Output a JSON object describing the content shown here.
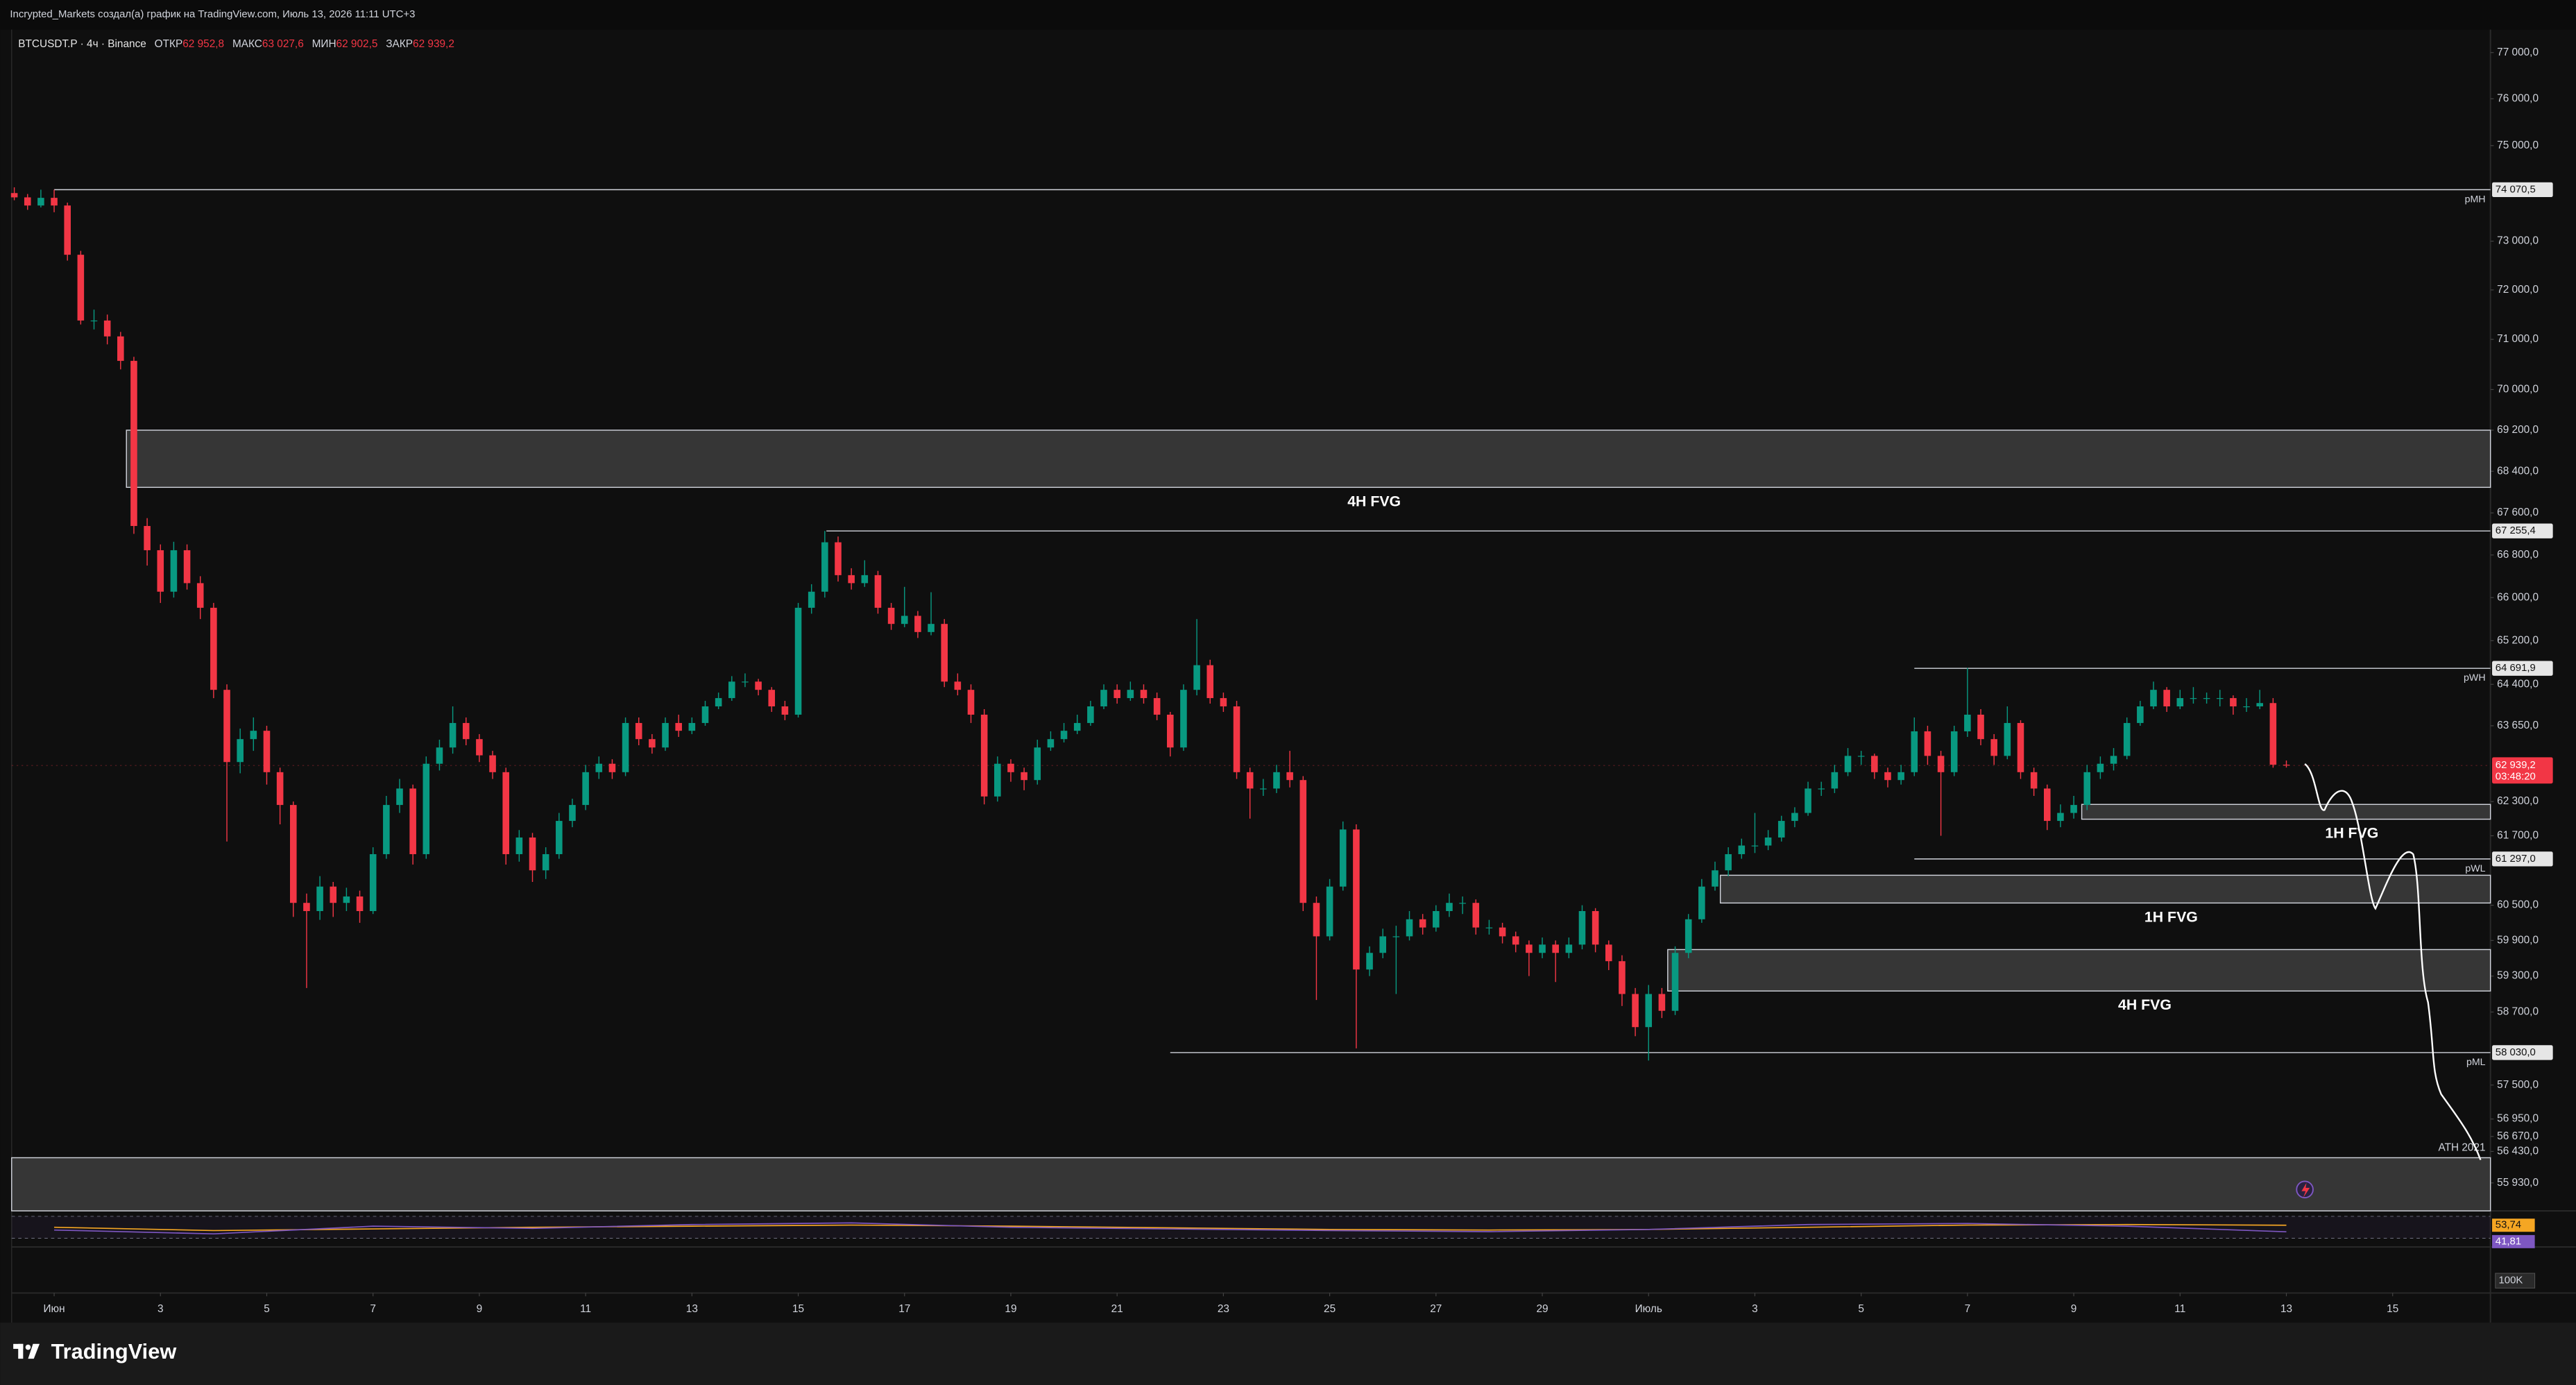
{
  "header": {
    "text": "Incrypted_Markets создал(а) график на TradingView.com, Июль 13, 2026 11:11 UTC+3"
  },
  "logo": "TradingView",
  "chart_data": {
    "type": "candlestick",
    "symbol": "BTCUSDT.P · 4ч · Binance",
    "ohlc_legend": [
      {
        "label": "ОТКР",
        "value": "62 952,8"
      },
      {
        "label": "МАКС",
        "value": "63 027,6"
      },
      {
        "label": "МИН",
        "value": "62 902,5"
      },
      {
        "label": "ЗАКР",
        "value": "62 939,2"
      }
    ],
    "up_color": "#089981",
    "down_color": "#f23645",
    "log_scale": true,
    "grid": false,
    "xlim": [
      -0.8,
      45.84
    ],
    "xticks": [
      {
        "value": 0,
        "label": "Июн"
      },
      {
        "value": 2,
        "label": "3"
      },
      {
        "value": 4,
        "label": "5"
      },
      {
        "value": 6,
        "label": "7"
      },
      {
        "value": 8,
        "label": "9"
      },
      {
        "value": 10,
        "label": "11"
      },
      {
        "value": 12,
        "label": "13"
      },
      {
        "value": 14,
        "label": "15"
      },
      {
        "value": 16,
        "label": "17"
      },
      {
        "value": 18,
        "label": "19"
      },
      {
        "value": 20,
        "label": "21"
      },
      {
        "value": 22,
        "label": "23"
      },
      {
        "value": 24,
        "label": "25"
      },
      {
        "value": 26,
        "label": "27"
      },
      {
        "value": 28,
        "label": "29"
      },
      {
        "value": 30,
        "label": "Июль"
      },
      {
        "value": 32,
        "label": "3"
      },
      {
        "value": 34,
        "label": "5"
      },
      {
        "value": 36,
        "label": "7"
      },
      {
        "value": 38,
        "label": "9"
      },
      {
        "value": 40,
        "label": "11"
      },
      {
        "value": 42,
        "label": "13"
      },
      {
        "value": 44,
        "label": "15"
      }
    ],
    "ylim": [
      55490,
      77430
    ],
    "yticks": [
      {
        "value": 77000,
        "label": "77 000,0"
      },
      {
        "value": 76000,
        "label": "76 000,0"
      },
      {
        "value": 75000,
        "label": "75 000,0"
      },
      {
        "value": 73000,
        "label": "73 000,0"
      },
      {
        "value": 72000,
        "label": "72 000,0"
      },
      {
        "value": 71000,
        "label": "71 000,0"
      },
      {
        "value": 70000,
        "label": "70 000,0"
      },
      {
        "value": 69200,
        "label": "69 200,0"
      },
      {
        "value": 68400,
        "label": "68 400,0"
      },
      {
        "value": 67600,
        "label": "67 600,0"
      },
      {
        "value": 66800,
        "label": "66 800,0"
      },
      {
        "value": 66000,
        "label": "66 000,0"
      },
      {
        "value": 65200,
        "label": "65 200,0"
      },
      {
        "value": 64400,
        "label": "64 400,0"
      },
      {
        "value": 63650,
        "label": "63 650,0"
      },
      {
        "value": 62300,
        "label": "62 300,0"
      },
      {
        "value": 61700,
        "label": "61 700,0"
      },
      {
        "value": 60500,
        "label": "60 500,0"
      },
      {
        "value": 59900,
        "label": "59 900,0"
      },
      {
        "value": 59300,
        "label": "59 300,0"
      },
      {
        "value": 58700,
        "label": "58 700,0"
      },
      {
        "value": 57500,
        "label": "57 500,0"
      },
      {
        "value": 56950,
        "label": "56 950,0"
      },
      {
        "value": 56670,
        "label": "56 670,0"
      },
      {
        "value": 56430,
        "label": "56 430,0"
      },
      {
        "value": 55930,
        "label": "55 930,0"
      }
    ],
    "x": [
      -0.75,
      -0.5,
      -0.25,
      0,
      0.25,
      0.5,
      0.75,
      1,
      1.25,
      1.5,
      1.75,
      2,
      2.25,
      2.5,
      2.75,
      3,
      3.25,
      3.5,
      3.75,
      4,
      4.25,
      4.5,
      4.75,
      5,
      5.25,
      5.5,
      5.75,
      6,
      6.25,
      6.5,
      6.75,
      7,
      7.25,
      7.5,
      7.75,
      8,
      8.25,
      8.5,
      8.75,
      9,
      9.25,
      9.5,
      9.75,
      10,
      10.25,
      10.5,
      10.75,
      11,
      11.25,
      11.5,
      11.75,
      12,
      12.25,
      12.5,
      12.75,
      13,
      13.25,
      13.5,
      13.75,
      14,
      14.25,
      14.5,
      14.75,
      15,
      15.25,
      15.5,
      15.75,
      16,
      16.25,
      16.5,
      16.75,
      17,
      17.25,
      17.5,
      17.75,
      18,
      18.25,
      18.5,
      18.75,
      19,
      19.25,
      19.5,
      19.75,
      20,
      20.25,
      20.5,
      20.75,
      21,
      21.25,
      21.5,
      21.75,
      22,
      22.25,
      22.5,
      22.75,
      23,
      23.25,
      23.5,
      23.75,
      24,
      24.25,
      24.5,
      24.75,
      25,
      25.25,
      25.5,
      25.75,
      26,
      26.25,
      26.5,
      26.75,
      27,
      27.25,
      27.5,
      27.75,
      28,
      28.25,
      28.5,
      28.75,
      29,
      29.25,
      29.5,
      29.75,
      30,
      30.25,
      30.5,
      30.75,
      31,
      31.25,
      31.5,
      31.75,
      32,
      32.25,
      32.5,
      32.75,
      33,
      33.25,
      33.5,
      33.75,
      34,
      34.25,
      34.5,
      34.75,
      35,
      35.25,
      35.5,
      35.75,
      36,
      36.25,
      36.5,
      36.75,
      37,
      37.25,
      37.5,
      37.75,
      38,
      38.25,
      38.5,
      38.75,
      39,
      39.25,
      39.5,
      39.75,
      40,
      40.25,
      40.5,
      40.75,
      41,
      41.25,
      41.5,
      41.75,
      42
    ],
    "open": [
      74000,
      73910,
      73740,
      73900,
      73740,
      72720,
      71380,
      71380,
      71060,
      70570,
      67350,
      66890,
      66110,
      66890,
      66270,
      65810,
      64300,
      63000,
      63410,
      63560,
      62820,
      62240,
      60540,
      60400,
      60820,
      60540,
      60650,
      60400,
      61380,
      62240,
      62530,
      61380,
      62970,
      63260,
      63700,
      63410,
      63120,
      62820,
      61380,
      61670,
      61100,
      61380,
      61960,
      62240,
      62820,
      62970,
      62820,
      63700,
      63410,
      63260,
      63700,
      63560,
      63700,
      64000,
      64150,
      64450,
      64450,
      64300,
      64000,
      63850,
      65810,
      66110,
      67040,
      66420,
      66270,
      66420,
      65810,
      65510,
      65660,
      65360,
      65510,
      64450,
      64300,
      63850,
      62390,
      62970,
      62820,
      62680,
      63260,
      63410,
      63560,
      63700,
      64000,
      64300,
      64150,
      64300,
      64150,
      63850,
      63260,
      64300,
      64750,
      64150,
      64000,
      62820,
      62530,
      62530,
      62820,
      62680,
      60540,
      59970,
      60820,
      61810,
      59410,
      59690,
      59970,
      59970,
      60260,
      60120,
      60400,
      60540,
      60540,
      60120,
      60120,
      59970,
      59830,
      59690,
      59830,
      59690,
      59830,
      60400,
      59830,
      59550,
      59000,
      58450,
      59000,
      58720,
      59690,
      60260,
      60820,
      61100,
      61380,
      61530,
      61530,
      61670,
      61960,
      62100,
      62530,
      62530,
      62820,
      63110,
      63110,
      62820,
      62680,
      62820,
      63550,
      63110,
      62820,
      63550,
      63850,
      63410,
      63110,
      63700,
      62820,
      62530,
      61960,
      62100,
      62240,
      62820,
      62970,
      63110,
      63700,
      64000,
      64300,
      64000,
      64150,
      64150,
      64150,
      64150,
      64000,
      64000,
      64060,
      62952.8
    ],
    "high": [
      74120,
      73980,
      74070.5,
      74070,
      73800,
      72800,
      71600,
      71500,
      71150,
      70650,
      67500,
      67000,
      67050,
      67000,
      66400,
      65900,
      64400,
      63600,
      63800,
      63650,
      62900,
      62300,
      60700,
      61000,
      60900,
      60800,
      60750,
      61500,
      62400,
      62700,
      62600,
      63100,
      63400,
      64000,
      63800,
      63500,
      63200,
      62900,
      61800,
      61750,
      61500,
      62100,
      62350,
      62950,
      63100,
      63050,
      63800,
      63800,
      63500,
      63800,
      63850,
      63800,
      64100,
      64250,
      64550,
      64600,
      64500,
      64350,
      64100,
      65900,
      66250,
      67255.4,
      67150,
      66550,
      66700,
      66500,
      65900,
      66200,
      65750,
      66100,
      65600,
      64600,
      64400,
      63950,
      63100,
      63050,
      62900,
      63400,
      63550,
      63700,
      63850,
      64100,
      64400,
      64400,
      64450,
      64400,
      64250,
      63900,
      64400,
      65600,
      64850,
      64250,
      64100,
      62900,
      62700,
      62950,
      63200,
      62750,
      60650,
      60950,
      61950,
      61900,
      59800,
      60100,
      60150,
      60400,
      60350,
      60500,
      60700,
      60650,
      60600,
      60250,
      60200,
      60050,
      59900,
      59950,
      59900,
      59950,
      60500,
      60450,
      59900,
      59650,
      59100,
      59150,
      59100,
      59800,
      60350,
      60950,
      61250,
      61500,
      61650,
      62100,
      61800,
      62050,
      62200,
      62650,
      62650,
      62950,
      63250,
      63200,
      63150,
      62900,
      62950,
      63800,
      63650,
      63200,
      63650,
      64700,
      63950,
      63500,
      64000,
      63750,
      62900,
      62600,
      62250,
      62400,
      62950,
      63100,
      63250,
      63800,
      64100,
      64450,
      64350,
      64300,
      64350,
      64250,
      64300,
      64200,
      64150,
      64300,
      64150,
      63027.6
    ],
    "low": [
      73850,
      73650,
      73700,
      73600,
      72600,
      71300,
      71200,
      70900,
      70400,
      67200,
      66600,
      65900,
      66000,
      66150,
      65600,
      64150,
      61600,
      62800,
      63200,
      62600,
      61900,
      60300,
      59100,
      60250,
      60300,
      60400,
      60200,
      60350,
      61300,
      62100,
      61200,
      61300,
      62850,
      63150,
      63300,
      63000,
      62700,
      61200,
      61250,
      60900,
      60950,
      61300,
      61850,
      62150,
      62700,
      62700,
      62750,
      63300,
      63150,
      63200,
      63450,
      63500,
      63650,
      63950,
      64100,
      64350,
      64200,
      63900,
      63750,
      63800,
      65700,
      66000,
      66300,
      66150,
      66200,
      65700,
      65400,
      65450,
      65250,
      65300,
      64350,
      64200,
      63700,
      62250,
      62300,
      62650,
      62500,
      62600,
      63200,
      63350,
      63500,
      63650,
      63950,
      64050,
      64100,
      64050,
      63750,
      63100,
      63200,
      64200,
      64050,
      63900,
      62700,
      62000,
      62400,
      62450,
      62550,
      60400,
      58900,
      59900,
      60750,
      58100,
      59300,
      59600,
      59000,
      59900,
      60000,
      60050,
      60300,
      60350,
      60000,
      60000,
      59850,
      59700,
      59300,
      59600,
      59200,
      59600,
      59750,
      59700,
      59400,
      58800,
      58300,
      57900,
      58600,
      58650,
      59600,
      60200,
      60750,
      61000,
      61300,
      61400,
      61450,
      61600,
      61850,
      62050,
      62400,
      62450,
      62750,
      62950,
      62700,
      62550,
      62600,
      62750,
      62950,
      61700,
      62750,
      63450,
      63300,
      62950,
      63050,
      62700,
      62400,
      61800,
      61850,
      62000,
      62150,
      62700,
      62850,
      63050,
      63650,
      63950,
      63900,
      63950,
      64050,
      64050,
      64000,
      63850,
      63900,
      63950,
      62900,
      62902.5
    ],
    "close": [
      73910,
      73740,
      73900,
      73740,
      72720,
      71380,
      71380,
      71060,
      70570,
      67350,
      66890,
      66110,
      66890,
      66270,
      65810,
      64300,
      63000,
      63410,
      63560,
      62820,
      62240,
      60540,
      60400,
      60820,
      60540,
      60650,
      60400,
      61380,
      62240,
      62530,
      61380,
      62970,
      63260,
      63700,
      63410,
      63120,
      62820,
      61380,
      61670,
      61100,
      61380,
      61960,
      62240,
      62820,
      62970,
      62820,
      63700,
      63410,
      63260,
      63700,
      63560,
      63700,
      64000,
      64150,
      64450,
      64450,
      64300,
      64000,
      63850,
      65810,
      66110,
      67040,
      66420,
      66270,
      66420,
      65810,
      65510,
      65660,
      65360,
      65510,
      64450,
      64300,
      63850,
      62390,
      62970,
      62820,
      62680,
      63260,
      63410,
      63560,
      63700,
      64000,
      64300,
      64150,
      64300,
      64150,
      63850,
      63260,
      64300,
      64750,
      64150,
      64000,
      62820,
      62530,
      62530,
      62820,
      62680,
      60540,
      59970,
      60820,
      61810,
      59410,
      59690,
      59970,
      59970,
      60260,
      60120,
      60400,
      60540,
      60540,
      60120,
      60120,
      59970,
      59830,
      59690,
      59830,
      59690,
      59830,
      60400,
      59830,
      59550,
      59000,
      58450,
      59000,
      58720,
      59690,
      60260,
      60820,
      61100,
      61380,
      61530,
      61530,
      61670,
      61960,
      62100,
      62530,
      62530,
      62820,
      63110,
      63110,
      62820,
      62680,
      62820,
      63550,
      63110,
      62820,
      63550,
      63850,
      63410,
      63110,
      63700,
      62820,
      62530,
      61960,
      62100,
      62240,
      62820,
      62970,
      63110,
      63700,
      64000,
      64300,
      64000,
      64150,
      64150,
      64150,
      64150,
      64000,
      64000,
      64060,
      62952.8,
      62939.2
    ],
    "last_price": {
      "value": 62939.2,
      "label": "62 939,2",
      "countdown": "03:48:20"
    },
    "levels": [
      {
        "name": "pMH",
        "value": 74070.5,
        "label": "74 070,5",
        "x_from": 0
      },
      {
        "value": 67255.4,
        "label": "67 255,4",
        "x_from": 14.53
      },
      {
        "name": "pWH",
        "value": 64691.9,
        "label": "64 691,9",
        "x_from": 35
      },
      {
        "name": "pWL",
        "value": 61297,
        "label": "61 297,0",
        "x_from": 35
      },
      {
        "name": "pML",
        "value": 58030,
        "label": "58 030,0",
        "x_from": 21
      }
    ],
    "zones": [
      {
        "label": "4H FVG",
        "top": 69200,
        "bottom": 68090,
        "x_from": 1.36
      },
      {
        "label": "1H FVG",
        "top": 62250,
        "bottom": 61990,
        "x_from": 38.15
      },
      {
        "label": "1H FVG",
        "top": 61015,
        "bottom": 60538,
        "x_from": 31.35
      },
      {
        "label": "4H FVG",
        "top": 59746,
        "bottom": 59050,
        "x_from": 30.36
      },
      {
        "label": "ATH 2021",
        "top": 56330,
        "bottom": 55490,
        "x_from": -0.8
      }
    ],
    "rsi": {
      "x": [
        0,
        3,
        6,
        9,
        12,
        15,
        18,
        21,
        24,
        27,
        30,
        33,
        36,
        39,
        42
      ],
      "values": [
        45,
        38,
        52,
        48,
        55,
        58,
        50,
        47,
        44,
        42,
        46,
        55,
        57,
        52,
        41.81
      ],
      "ma_values": [
        50,
        44,
        47,
        50,
        52,
        54,
        52,
        49,
        46,
        45,
        46,
        50,
        54,
        55,
        53.74
      ],
      "value_label": "41,81",
      "ma_label": "53,74",
      "color": "#7e57c2",
      "ma_color": "#f5a623",
      "ylim": [
        20,
        80
      ],
      "bands": [
        70,
        30
      ]
    },
    "volume": {
      "scale_label": "100K"
    }
  }
}
